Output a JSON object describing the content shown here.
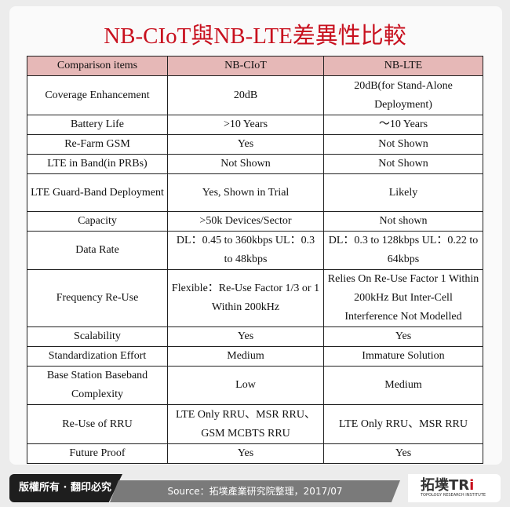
{
  "title": "NB-CIoT與NB-LTE差異性比較",
  "table": {
    "headers": [
      "Comparison items",
      "NB-CIoT",
      "NB-LTE"
    ],
    "rows": [
      {
        "item": "Coverage Enhancement",
        "ciot": "20dB",
        "lte": "20dB(for Stand-Alone Deployment)",
        "h": 50
      },
      {
        "item": "Battery Life",
        "ciot": ">10 Years",
        "lte": "～10 Years",
        "h": 24
      },
      {
        "item": "Re-Farm GSM",
        "ciot": "Yes",
        "lte": "Not Shown",
        "h": 25
      },
      {
        "item": "LTE in Band(in PRBs)",
        "ciot": "Not Shown",
        "lte": "Not Shown",
        "h": 25
      },
      {
        "item": "LTE Guard-Band Deployment",
        "ciot": "Yes, Shown in Trial",
        "lte": "Likely",
        "h": 48
      },
      {
        "item": "Capacity",
        "ciot": ">50k Devices/Sector",
        "lte": "Not shown",
        "h": 25
      },
      {
        "item": "Data Rate",
        "ciot": "DL：0.45 to 360kbps UL：0.3 to 48kbps",
        "lte": "DL：0.3 to 128kbps UL：0.22 to 64kbps",
        "h": 49
      },
      {
        "item": "Frequency Re-Use",
        "ciot": "Flexible：Re-Use Factor 1/3 or 1 Within 200kHz",
        "lte": "Relies On Re-Use Factor 1 Within 200kHz But Inter-Cell Interference Not Modelled",
        "h": 73
      },
      {
        "item": "Scalability",
        "ciot": "Yes",
        "lte": "Yes",
        "h": 25
      },
      {
        "item": "Standardization Effort",
        "ciot": "Medium",
        "lte": "Immature Solution",
        "h": 24
      },
      {
        "item": "Base Station Baseband Complexity",
        "ciot": "Low",
        "lte": "Medium",
        "h": 48
      },
      {
        "item": "Re-Use of RRU",
        "ciot": "LTE Only RRU、MSR RRU、GSM MCBTS RRU",
        "lte": "LTE Only RRU、MSR RRU",
        "h": 50
      },
      {
        "item": "Future Proof",
        "ciot": "Yes",
        "lte": "Yes",
        "h": 24
      }
    ]
  },
  "footer": {
    "copyright": "版權所有 · 翻印必究",
    "source": "Source：拓墣產業研究院整理，2017/07",
    "logo_text": "拓墣TRi",
    "logo_sub": "TOPOLOGY RESEARCH INSTITUTE"
  },
  "colors": {
    "title": "#c8101e",
    "header_bg": "#e6b8b7"
  }
}
